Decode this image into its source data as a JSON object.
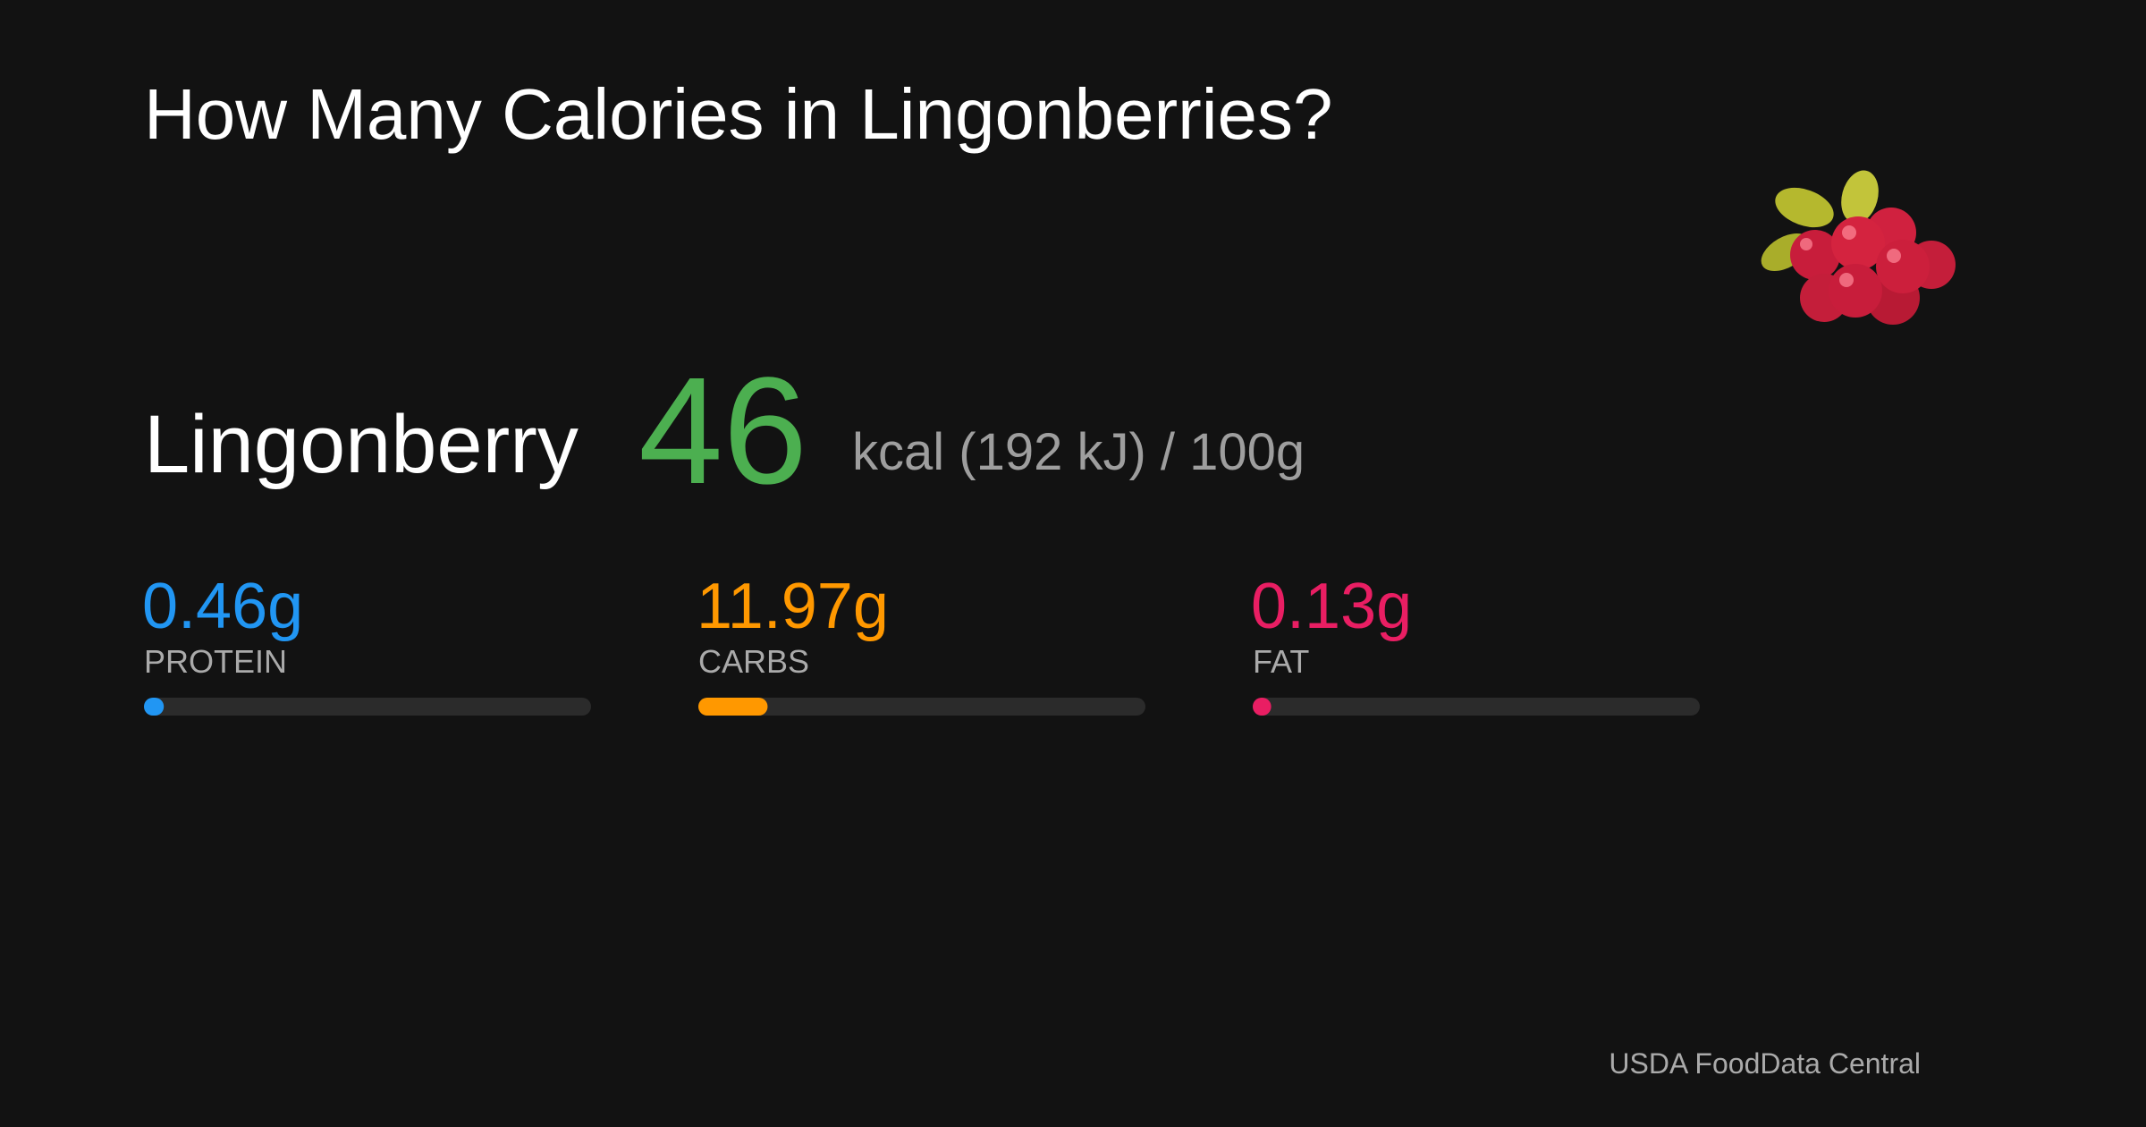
{
  "title": "How Many Calories in Lingonberries?",
  "food": {
    "name": "Lingonberry",
    "kcal": 46,
    "kcal_color": "#4caf50",
    "energy_detail": "kcal (192 kJ) / ",
    "basis": {
      "value": 100,
      "label": "100g"
    }
  },
  "macros": [
    {
      "name": "PROTEIN",
      "amount": {
        "value": 0.46,
        "label": "0.46g"
      },
      "color": "#2196f3"
    },
    {
      "name": "CARBS",
      "amount": {
        "value": 11.97,
        "label": "11.97g"
      },
      "color": "#ff9800"
    },
    {
      "name": "FAT",
      "amount": {
        "value": 0.13,
        "label": "0.13g"
      },
      "color": "#e91e63"
    }
  ],
  "source": "USDA FoodData Central"
}
